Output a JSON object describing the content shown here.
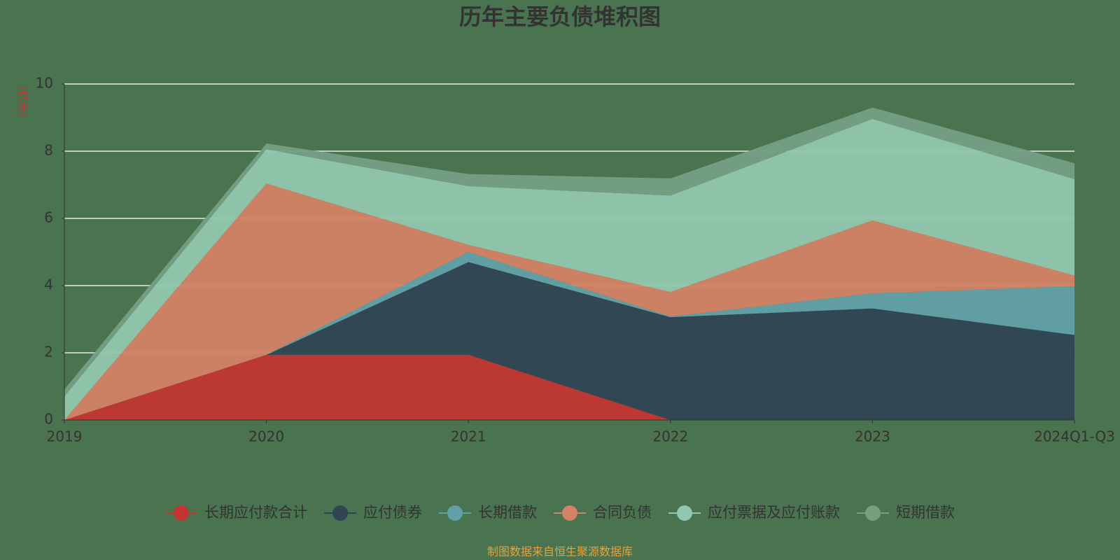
{
  "chart_data": {
    "type": "stacked_area",
    "title": "历年主要负债堆积图",
    "y_label": "(亿元)",
    "source": "制图数据来自恒生聚源数据库",
    "categories": [
      "2019",
      "2020",
      "2021",
      "2022",
      "2023",
      "2024Q1-Q3"
    ],
    "series": [
      {
        "name": "长期应付款合计",
        "color": "#c23531",
        "values": [
          0,
          1.94,
          1.94,
          0,
          0,
          0
        ]
      },
      {
        "name": "应付债券",
        "color": "#2f4554",
        "values": [
          0,
          0,
          2.76,
          3.06,
          3.32,
          2.53
        ]
      },
      {
        "name": "长期借款",
        "color": "#61a0a8",
        "values": [
          0,
          0,
          0.3,
          0.02,
          0.45,
          1.45
        ]
      },
      {
        "name": "合同负债",
        "color": "#d48265",
        "values": [
          0,
          5.1,
          0.21,
          0.73,
          2.17,
          0.32
        ]
      },
      {
        "name": "应付票据及应付账款",
        "color": "#91c7ae",
        "values": [
          0.7,
          1.02,
          1.75,
          2.87,
          3.02,
          2.87
        ]
      },
      {
        "name": "短期借款",
        "color": "#749f83",
        "values": [
          0.21,
          0.17,
          0.36,
          0.51,
          0.34,
          0.47
        ]
      }
    ],
    "ylim": [
      0,
      10
    ],
    "yticks": [
      0,
      2,
      4,
      6,
      8,
      10
    ],
    "grid": true,
    "legend": "bottom"
  }
}
